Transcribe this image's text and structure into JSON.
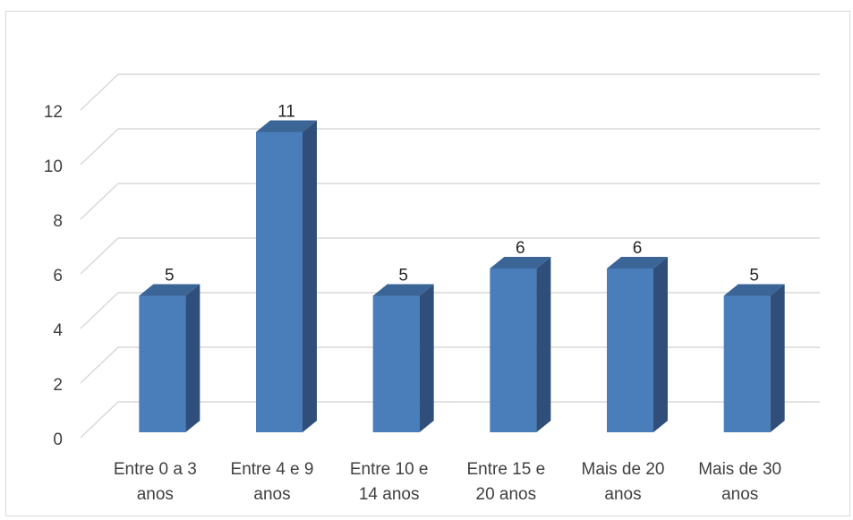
{
  "chart_data": {
    "type": "bar",
    "title": "",
    "xlabel": "",
    "ylabel": "",
    "categories": [
      [
        "Entre 0 a 3",
        "anos"
      ],
      [
        "Entre 4 e 9",
        "anos"
      ],
      [
        "Entre 10 e",
        "14 anos"
      ],
      [
        "Entre 15 e",
        "20 anos"
      ],
      [
        "Mais de 20",
        "anos"
      ],
      [
        "Mais de 30",
        "anos"
      ]
    ],
    "values": [
      5,
      11,
      5,
      6,
      6,
      5
    ],
    "data_labels": [
      "5",
      "11",
      "5",
      "6",
      "6",
      "5"
    ],
    "ylim": [
      0,
      12
    ],
    "yticks": [
      "0",
      "2",
      "4",
      "6",
      "8",
      "10",
      "12"
    ],
    "grid": true,
    "style": "3d-column",
    "colors": {
      "bar_front": "#4a7ebb",
      "bar_side": "#2f4f7a",
      "bar_top": "#3b6596",
      "grid": "#d9d9d9",
      "text": "#404040"
    }
  }
}
